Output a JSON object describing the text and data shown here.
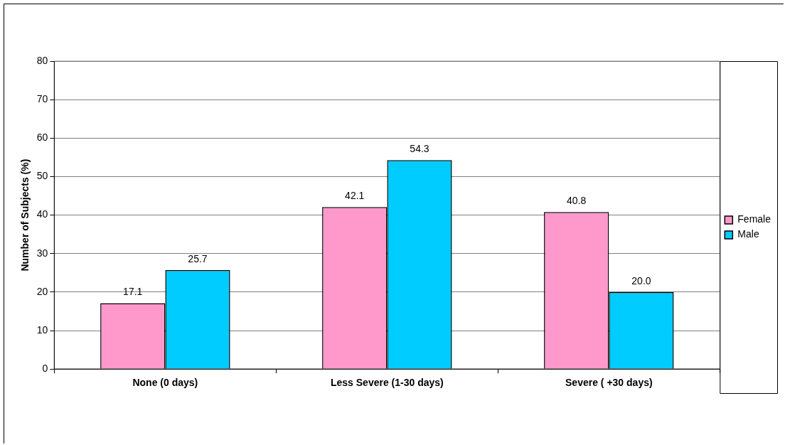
{
  "chart_data": {
    "type": "bar",
    "ylabel": "Number of Subjects (%)",
    "categories": [
      "None (0 days)",
      "Less Severe (1-30 days)",
      "Severe ( +30 days)"
    ],
    "series": [
      {
        "name": "Female",
        "color": "#ff99cc",
        "values": [
          17.1,
          42.1,
          40.8
        ],
        "value_labels": [
          "17.1",
          "42.1",
          "40.8"
        ]
      },
      {
        "name": "Male",
        "color": "#00ccff",
        "values": [
          25.7,
          54.3,
          20.0
        ],
        "value_labels": [
          "25.7",
          "54.3",
          "20.0"
        ]
      }
    ],
    "ylim": [
      0,
      80
    ],
    "yticks": [
      0,
      10,
      20,
      30,
      40,
      50,
      60,
      70,
      80
    ],
    "grid": "y",
    "legend": "right"
  }
}
